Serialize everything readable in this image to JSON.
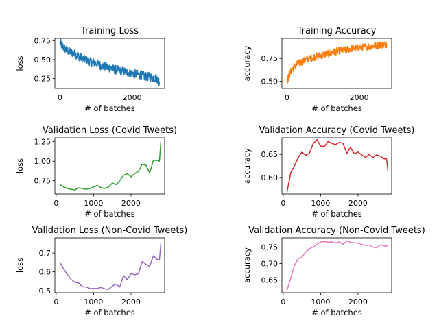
{
  "chart_data": [
    {
      "id": "train_loss",
      "type": "line",
      "title": "Training Loss",
      "xlabel": "# of batches",
      "ylabel": "loss",
      "xlim": [
        -140,
        2900
      ],
      "ylim": [
        0.12,
        0.78
      ],
      "xticks": [
        0,
        2000
      ],
      "yticks": [
        0.25,
        0.5,
        0.75
      ],
      "ytick_labels": [
        "0.25",
        "0.50",
        "0.75"
      ],
      "color": "#1f77b4",
      "series": [
        {
          "x": [
            0,
            100,
            200,
            300,
            400,
            500,
            600,
            700,
            800,
            900,
            1000,
            1100,
            1200,
            1300,
            1400,
            1500,
            1600,
            1700,
            1800,
            1900,
            2000,
            2100,
            2200,
            2300,
            2400,
            2500,
            2600,
            2700,
            2760
          ],
          "y": [
            0.72,
            0.66,
            0.62,
            0.6,
            0.58,
            0.55,
            0.52,
            0.5,
            0.48,
            0.46,
            0.45,
            0.43,
            0.41,
            0.4,
            0.39,
            0.37,
            0.36,
            0.35,
            0.34,
            0.33,
            0.32,
            0.31,
            0.3,
            0.29,
            0.28,
            0.27,
            0.26,
            0.25,
            0.2
          ],
          "noise": 0.12
        }
      ]
    },
    {
      "id": "train_acc",
      "type": "line",
      "title": "Training Accuracy",
      "xlabel": "# of batches",
      "ylabel": "accuracy",
      "xlim": [
        -140,
        2900
      ],
      "ylim": [
        0.42,
        0.97
      ],
      "xticks": [
        0,
        2000
      ],
      "yticks": [
        0.5,
        0.75
      ],
      "ytick_labels": [
        "0.50",
        "0.75"
      ],
      "color": "#ff7f0e",
      "series": [
        {
          "x": [
            0,
            100,
            200,
            300,
            400,
            500,
            600,
            700,
            800,
            900,
            1000,
            1100,
            1200,
            1300,
            1400,
            1500,
            1600,
            1700,
            1800,
            1900,
            2000,
            2100,
            2200,
            2300,
            2400,
            2500,
            2600,
            2700,
            2760
          ],
          "y": [
            0.5,
            0.6,
            0.66,
            0.69,
            0.71,
            0.73,
            0.75,
            0.76,
            0.77,
            0.78,
            0.79,
            0.8,
            0.81,
            0.82,
            0.83,
            0.84,
            0.84,
            0.85,
            0.86,
            0.86,
            0.87,
            0.87,
            0.88,
            0.88,
            0.89,
            0.89,
            0.9,
            0.9,
            0.91
          ],
          "noise": 0.08
        }
      ]
    },
    {
      "id": "val_loss_covid",
      "type": "line",
      "title": "Validation Loss (Covid Tweets)",
      "xlabel": "# of batches",
      "ylabel": "loss",
      "xlim": [
        -35,
        2900
      ],
      "ylim": [
        0.58,
        1.3
      ],
      "xticks": [
        0,
        1000,
        2000
      ],
      "yticks": [
        0.75,
        1.0,
        1.25
      ],
      "ytick_labels": [
        "0.75",
        "1.00",
        "1.25"
      ],
      "color": "#2ca02c",
      "series": [
        {
          "x": [
            100,
            200,
            300,
            400,
            500,
            600,
            700,
            800,
            900,
            1000,
            1100,
            1200,
            1300,
            1400,
            1500,
            1600,
            1700,
            1800,
            1900,
            2000,
            2100,
            2200,
            2300,
            2400,
            2500,
            2600,
            2700,
            2760,
            2800
          ],
          "y": [
            0.7,
            0.67,
            0.65,
            0.64,
            0.63,
            0.66,
            0.65,
            0.64,
            0.65,
            0.67,
            0.69,
            0.66,
            0.65,
            0.67,
            0.72,
            0.7,
            0.75,
            0.82,
            0.84,
            0.8,
            0.84,
            0.87,
            0.96,
            0.95,
            0.85,
            1.01,
            1.01,
            1.0,
            1.25
          ]
        }
      ]
    },
    {
      "id": "val_acc_covid",
      "type": "line",
      "title": "Validation Accuracy (Covid Tweets)",
      "xlabel": "# of batches",
      "ylabel": "accuracy",
      "xlim": [
        -35,
        2900
      ],
      "ylim": [
        0.564,
        0.686
      ],
      "xticks": [
        0,
        1000,
        2000
      ],
      "yticks": [
        0.6,
        0.65
      ],
      "ytick_labels": [
        "0.60",
        "0.65"
      ],
      "color": "#d62728",
      "series": [
        {
          "x": [
            100,
            200,
            300,
            400,
            500,
            600,
            700,
            800,
            900,
            1000,
            1100,
            1200,
            1300,
            1400,
            1500,
            1600,
            1700,
            1800,
            1900,
            2000,
            2100,
            2200,
            2300,
            2400,
            2500,
            2600,
            2700,
            2760,
            2800
          ],
          "y": [
            0.568,
            0.61,
            0.625,
            0.643,
            0.655,
            0.648,
            0.652,
            0.673,
            0.682,
            0.668,
            0.667,
            0.678,
            0.674,
            0.671,
            0.676,
            0.674,
            0.652,
            0.665,
            0.651,
            0.655,
            0.649,
            0.643,
            0.65,
            0.643,
            0.649,
            0.646,
            0.64,
            0.641,
            0.615
          ]
        }
      ]
    },
    {
      "id": "val_loss_noncovid",
      "type": "line",
      "title": "Validation Loss (Non-Covid Tweets)",
      "xlabel": "# of batches",
      "ylabel": "loss",
      "xlim": [
        -35,
        2900
      ],
      "ylim": [
        0.49,
        0.78
      ],
      "xticks": [
        0,
        1000,
        2000
      ],
      "yticks": [
        0.5,
        0.6,
        0.7
      ],
      "ytick_labels": [
        "0.5",
        "0.6",
        "0.7"
      ],
      "color": "#9467bd",
      "series": [
        {
          "x": [
            100,
            200,
            300,
            400,
            500,
            600,
            700,
            800,
            900,
            1000,
            1100,
            1200,
            1300,
            1400,
            1500,
            1600,
            1700,
            1800,
            1900,
            2000,
            2100,
            2200,
            2300,
            2400,
            2500,
            2600,
            2700,
            2760,
            2800
          ],
          "y": [
            0.65,
            0.615,
            0.585,
            0.56,
            0.545,
            0.542,
            0.522,
            0.52,
            0.513,
            0.512,
            0.513,
            0.518,
            0.51,
            0.508,
            0.525,
            0.535,
            0.52,
            0.58,
            0.56,
            0.59,
            0.585,
            0.59,
            0.655,
            0.64,
            0.63,
            0.685,
            0.665,
            0.665,
            0.75
          ]
        }
      ]
    },
    {
      "id": "val_acc_noncovid",
      "type": "line",
      "title": "Validation Accuracy (Non-Covid Tweets)",
      "xlabel": "# of batches",
      "ylabel": "accuracy",
      "xlim": [
        -35,
        2900
      ],
      "ylim": [
        0.612,
        0.778
      ],
      "xticks": [
        0,
        1000,
        2000
      ],
      "yticks": [
        0.65,
        0.7,
        0.75
      ],
      "ytick_labels": [
        "0.65",
        "0.70",
        "0.75"
      ],
      "color": "#e377c2",
      "series": [
        {
          "x": [
            100,
            200,
            300,
            400,
            500,
            600,
            700,
            800,
            900,
            1000,
            1100,
            1200,
            1300,
            1400,
            1500,
            1600,
            1700,
            1800,
            1900,
            2000,
            2100,
            2200,
            2300,
            2400,
            2500,
            2600,
            2700,
            2760,
            2800
          ],
          "y": [
            0.62,
            0.655,
            0.695,
            0.715,
            0.72,
            0.735,
            0.745,
            0.75,
            0.758,
            0.765,
            0.767,
            0.765,
            0.766,
            0.762,
            0.766,
            0.758,
            0.769,
            0.764,
            0.763,
            0.762,
            0.758,
            0.755,
            0.756,
            0.75,
            0.748,
            0.757,
            0.754,
            0.753,
            0.755
          ]
        }
      ]
    }
  ]
}
